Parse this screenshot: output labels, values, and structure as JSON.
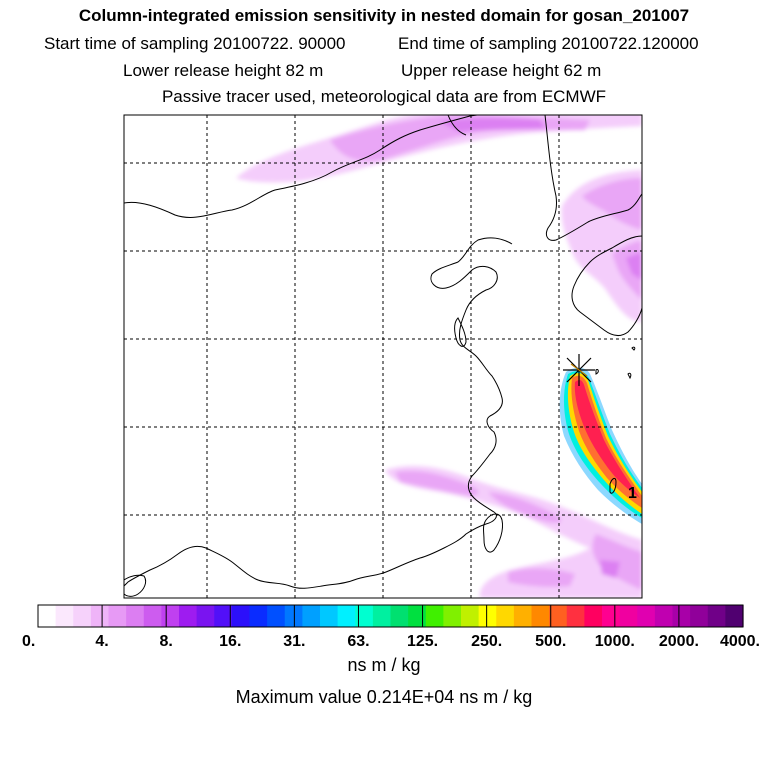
{
  "header": {
    "title": "Column-integrated emission sensitivity in nested domain for gosan_201007",
    "start_label": "Start time of sampling 20100722. 90000",
    "end_label": "End time of sampling 20100722.120000",
    "lower_label": "Lower release height   82 m",
    "upper_label": "Upper release height   62 m",
    "tracer_label": "Passive tracer used, meteorological data are from ECMWF"
  },
  "map": {
    "marker_label": "1",
    "release_marker": "star-marker"
  },
  "colorbar": {
    "colors": [
      "#ffffff",
      "#fbe8fd",
      "#f6d2fb",
      "#efb4f8",
      "#e79af5",
      "#dc7ef2",
      "#cd5cef",
      "#c040f0",
      "#9e1cf0",
      "#7a14f0",
      "#5210f8",
      "#2c10fa",
      "#0a2cff",
      "#0050ff",
      "#0078ff",
      "#00a0ff",
      "#00c8ff",
      "#00f0ff",
      "#00ffd0",
      "#00f0a0",
      "#00e070",
      "#00e040",
      "#40f000",
      "#80f000",
      "#c0f000",
      "#ffff00",
      "#ffd800",
      "#ffb000",
      "#ff8800",
      "#ff6020",
      "#ff3040",
      "#ff0060",
      "#ff0090",
      "#f000a0",
      "#e000b0",
      "#c000b0",
      "#a800a8",
      "#90009a",
      "#700088",
      "#500070"
    ],
    "tick_labels": [
      "0.",
      "4.",
      "8.",
      "16.",
      "31.",
      "63.",
      "125.",
      "250.",
      "500.",
      "1000.",
      "2000.",
      "4000."
    ],
    "units": "ns m / kg",
    "max_value": "Maximum value  0.214E+04 ns m / kg"
  }
}
